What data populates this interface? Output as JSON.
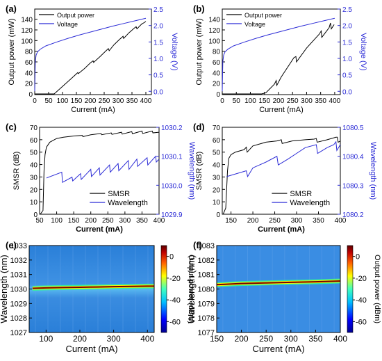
{
  "colors": {
    "black": "#000000",
    "blue": "#2b2bd6"
  },
  "panels": [
    {
      "panel_label": "(a)",
      "xlabel": "Current (mA)",
      "ylabel_left": "Output power (mW)",
      "ylabel_right": "Voltage (V)",
      "xticks": [
        "0",
        "50",
        "100",
        "150",
        "200",
        "250",
        "300",
        "350",
        "400"
      ],
      "yticks_left": [
        "0",
        "20",
        "40",
        "60",
        "80",
        "100",
        "120",
        "140"
      ],
      "yticks_right": [
        "0.0",
        "0.5",
        "1.0",
        "1.5",
        "2.0",
        "2.5"
      ],
      "legend": [
        "Output power",
        "Voltage"
      ]
    },
    {
      "panel_label": "(b)",
      "xlabel": "Current (mA)",
      "ylabel_left": "Output power (mW)",
      "ylabel_right": "Voltage (V)",
      "xticks": [
        "0",
        "50",
        "100",
        "150",
        "200",
        "250",
        "300",
        "350",
        "400"
      ],
      "yticks_left": [
        "0",
        "20",
        "40",
        "60",
        "80",
        "100",
        "120",
        "140"
      ],
      "yticks_right": [
        "0.0",
        "0.5",
        "1.0",
        "1.5",
        "2.0",
        "2.5"
      ],
      "legend": [
        "Output power",
        "Voltage"
      ]
    },
    {
      "panel_label": "(c)",
      "xlabel": "Current (mA)",
      "ylabel_left": "SMSR (dB)",
      "ylabel_right": "Wavelength (nm)",
      "xticks": [
        "50",
        "100",
        "150",
        "200",
        "250",
        "300",
        "350",
        "400"
      ],
      "yticks_left": [
        "0",
        "10",
        "20",
        "30",
        "40",
        "50",
        "60",
        "70"
      ],
      "yticks_right": [
        "1029.9",
        "1030.0",
        "1030.1",
        "1030.2"
      ],
      "legend": [
        "SMSR",
        "Wavelength"
      ]
    },
    {
      "panel_label": "(d)",
      "xlabel": "Current (mA)",
      "ylabel_left": "SMSR (dB)",
      "ylabel_right": "Wavelength (nm)",
      "xticks": [
        "150",
        "200",
        "250",
        "300",
        "350",
        "400"
      ],
      "yticks_left": [
        "0",
        "10",
        "20",
        "30",
        "40",
        "50",
        "60",
        "70"
      ],
      "yticks_right": [
        "1080.2",
        "1080.3",
        "1080.4",
        "1080.5"
      ],
      "legend": [
        "SMSR",
        "Wavelength"
      ]
    },
    {
      "panel_label": "(e)",
      "xlabel": "Current (mA)",
      "ylabel_left": "Wavelength (nm)",
      "ylabel_right": "Output power (dBm)",
      "xticks": [
        "100",
        "200",
        "300",
        "400"
      ],
      "yticks_left": [
        "1027",
        "1028",
        "1029",
        "1030",
        "1031",
        "1032",
        "1033"
      ],
      "colorbar_ticks": [
        "0",
        "-20",
        "-40",
        "-60"
      ]
    },
    {
      "panel_label": "(f)",
      "xlabel": "Current (mA)",
      "ylabel_left": "Wavelength (nm)",
      "ylabel_right": "Output power (dBm)",
      "xticks": [
        "150",
        "200",
        "250",
        "300",
        "350",
        "400"
      ],
      "yticks_left": [
        "1077",
        "1078",
        "1079",
        "1080",
        "1081",
        "1082",
        "1083"
      ],
      "colorbar_ticks": [
        "0",
        "-20",
        "-40",
        "-60"
      ]
    }
  ],
  "chart_data": [
    {
      "type": "line",
      "xlim": [
        0,
        420
      ],
      "ylim": [
        0,
        150
      ],
      "y2lim": [
        -0.1,
        2.5
      ],
      "series": [
        {
          "name": "Output power",
          "axis": "left",
          "x": [
            0,
            65,
            70,
            100,
            130,
            155,
            157,
            180,
            200,
            210,
            212,
            235,
            255,
            265,
            268,
            285,
            305,
            318,
            320,
            340,
            360,
            365,
            368,
            385,
            395,
            400
          ],
          "y": [
            0,
            0,
            0,
            14,
            28,
            40,
            38,
            48,
            58,
            62,
            59,
            70,
            80,
            85,
            81,
            92,
            102,
            108,
            104,
            115,
            124,
            126,
            122,
            131,
            134,
            136
          ]
        },
        {
          "name": "Voltage",
          "axis": "left2",
          "x": [
            0,
            2,
            5,
            10,
            20,
            40,
            80,
            120,
            160,
            200,
            240,
            280,
            320,
            360,
            400
          ],
          "y": [
            0,
            0.9,
            1.1,
            1.2,
            1.28,
            1.38,
            1.5,
            1.61,
            1.71,
            1.8,
            1.89,
            1.98,
            2.06,
            2.14,
            2.22
          ]
        }
      ]
    },
    {
      "type": "line",
      "xlim": [
        0,
        420
      ],
      "ylim": [
        0,
        150
      ],
      "y2lim": [
        -0.1,
        2.5
      ],
      "series": [
        {
          "name": "Output power",
          "axis": "left",
          "x": [
            0,
            140,
            155,
            185,
            192,
            194,
            210,
            255,
            262,
            264,
            300,
            345,
            352,
            354,
            380,
            385,
            388,
            398
          ],
          "y": [
            0,
            0,
            2,
            18,
            25,
            16,
            32,
            68,
            70,
            60,
            86,
            112,
            118,
            106,
            124,
            133,
            122,
            130
          ]
        },
        {
          "name": "Voltage",
          "axis": "left2",
          "x": [
            0,
            2,
            5,
            10,
            20,
            40,
            80,
            120,
            160,
            200,
            240,
            280,
            320,
            360,
            400
          ],
          "y": [
            0,
            0.9,
            1.1,
            1.2,
            1.28,
            1.38,
            1.5,
            1.61,
            1.71,
            1.8,
            1.89,
            1.98,
            2.06,
            2.14,
            2.22
          ]
        }
      ]
    },
    {
      "type": "line",
      "xlim": [
        50,
        400
      ],
      "ylim": [
        0,
        70
      ],
      "y2lim": [
        1029.9,
        1030.2
      ],
      "series": [
        {
          "name": "SMSR",
          "axis": "left",
          "x": [
            52,
            60,
            63,
            66,
            70,
            80,
            100,
            120,
            150,
            175,
            177,
            200,
            230,
            232,
            260,
            262,
            290,
            292,
            320,
            322,
            350,
            352,
            380,
            382,
            400
          ],
          "y": [
            0,
            3,
            35,
            48,
            54,
            58,
            61,
            62,
            63,
            63.5,
            62.5,
            64,
            65,
            64,
            65.5,
            64.3,
            66,
            64.5,
            66.5,
            64.8,
            67,
            65,
            67,
            65.5,
            66
          ]
        },
        {
          "name": "Wavelength",
          "axis": "right",
          "x": [
            70,
            115,
            117,
            145,
            147,
            170,
            172,
            200,
            202,
            225,
            227,
            255,
            257,
            280,
            282,
            310,
            312,
            335,
            337,
            365,
            367,
            390,
            392,
            400
          ],
          "y": [
            1030.025,
            1030.045,
            1030.01,
            1030.028,
            1030.015,
            1030.04,
            1030.02,
            1030.055,
            1030.03,
            1030.06,
            1030.035,
            1030.07,
            1030.045,
            1030.075,
            1030.05,
            1030.085,
            1030.055,
            1030.09,
            1030.065,
            1030.095,
            1030.07,
            1030.1,
            1030.08,
            1030.09
          ]
        }
      ]
    },
    {
      "type": "line",
      "xlim": [
        130,
        400
      ],
      "ylim": [
        0,
        70
      ],
      "y2lim": [
        1080.2,
        1080.5
      ],
      "series": [
        {
          "name": "SMSR",
          "axis": "left",
          "x": [
            132,
            138,
            142,
            145,
            150,
            160,
            180,
            185,
            187,
            200,
            230,
            255,
            265,
            267,
            290,
            320,
            340,
            345,
            347,
            370,
            390,
            393,
            395,
            400
          ],
          "y": [
            0,
            5,
            35,
            45,
            48,
            50,
            52,
            54,
            50,
            55,
            58,
            59,
            60,
            57,
            59,
            60,
            60.5,
            61,
            58,
            60,
            62,
            62,
            58,
            59
          ]
        },
        {
          "name": "Wavelength",
          "axis": "right",
          "x": [
            140,
            185,
            188,
            200,
            230,
            255,
            258,
            280,
            300,
            320,
            345,
            348,
            370,
            385,
            390,
            392,
            400
          ],
          "y": [
            1080.33,
            1080.35,
            1080.33,
            1080.36,
            1080.38,
            1080.4,
            1080.37,
            1080.39,
            1080.41,
            1080.43,
            1080.44,
            1080.41,
            1080.43,
            1080.44,
            1080.45,
            1080.42,
            1080.44
          ]
        }
      ]
    },
    {
      "type": "heatmap",
      "xlim": [
        50,
        420
      ],
      "ylim": [
        1027,
        1033
      ],
      "zlim": [
        -70,
        10
      ],
      "ridge": {
        "x": [
          60,
          100,
          150,
          200,
          250,
          300,
          350,
          400,
          420
        ],
        "y": [
          1030.05,
          1030.08,
          1030.1,
          1030.12,
          1030.14,
          1030.16,
          1030.18,
          1030.2,
          1030.2
        ]
      }
    },
    {
      "type": "heatmap",
      "xlim": [
        150,
        400
      ],
      "ylim": [
        1077,
        1083
      ],
      "zlim": [
        -70,
        10
      ],
      "ridge": {
        "x": [
          150,
          200,
          250,
          300,
          350,
          400
        ],
        "y": [
          1080.3,
          1080.38,
          1080.42,
          1080.46,
          1080.5,
          1080.55
        ]
      }
    }
  ]
}
